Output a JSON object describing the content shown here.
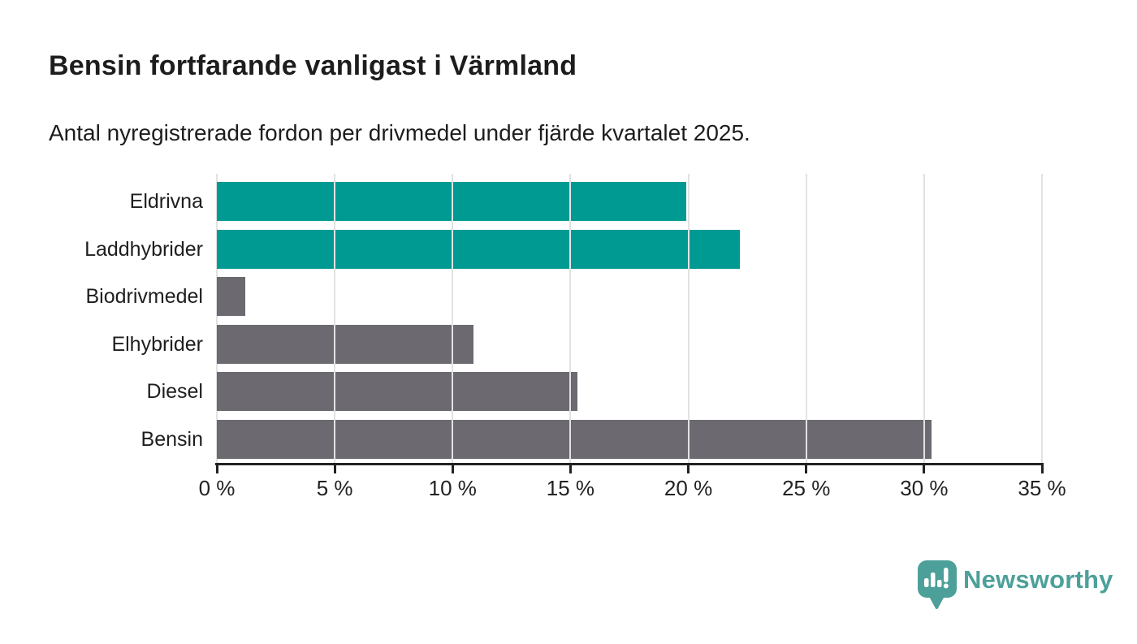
{
  "header": {
    "title": "Bensin fortfarande vanligast i Värmland",
    "subtitle": "Antal nyregistrerade fordon per drivmedel under fjärde kvartalet 2025."
  },
  "chart_data": {
    "type": "bar",
    "orientation": "horizontal",
    "title": "Bensin fortfarande vanligast i Värmland",
    "subtitle": "Antal nyregistrerade fordon per drivmedel under fjärde kvartalet 2025.",
    "categories": [
      "Eldrivna",
      "Laddhybrider",
      "Biodrivmedel",
      "Elhybrider",
      "Diesel",
      "Bensin"
    ],
    "values": [
      19.9,
      22.2,
      1.2,
      10.9,
      15.3,
      30.3
    ],
    "unit": "%",
    "bar_colors": [
      "#009a93",
      "#009a93",
      "#6c6970",
      "#6c6970",
      "#6c6970",
      "#6c6970"
    ],
    "highlight_color": "#009a93",
    "default_color": "#6c6970",
    "xlim": [
      0,
      35
    ],
    "x_ticks": [
      0,
      5,
      10,
      15,
      20,
      25,
      30,
      35
    ],
    "x_tick_labels": [
      "0 %",
      "5 %",
      "10 %",
      "15 %",
      "20 %",
      "25 %",
      "30 %",
      "35 %"
    ],
    "xlabel": "",
    "ylabel": "",
    "grid": true,
    "grid_color": "#e2e2e2",
    "axis_color": "#222222",
    "legend": false
  },
  "footer": {
    "brand": "Newsworthy",
    "logo_icon": "newsworthy-speech-bubble-chart-icon",
    "logo_color": "#4da09a"
  }
}
